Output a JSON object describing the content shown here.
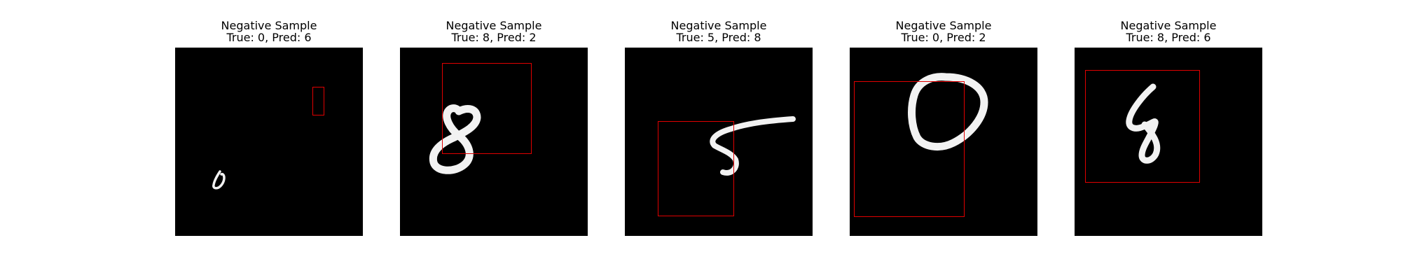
{
  "colors": {
    "background": "#ffffff",
    "image_background": "#000000",
    "digit_stroke": "#f2f2f2",
    "box_outline": "#e00000"
  },
  "samples": [
    {
      "heading": "Negative Sample",
      "caption": "True: 0, Pred: 6",
      "true_label": 0,
      "pred_label": 6
    },
    {
      "heading": "Negative Sample",
      "caption": "True: 8, Pred: 2",
      "true_label": 8,
      "pred_label": 2
    },
    {
      "heading": "Negative Sample",
      "caption": "True: 5, Pred: 8",
      "true_label": 5,
      "pred_label": 8
    },
    {
      "heading": "Negative Sample",
      "caption": "True: 0, Pred: 2",
      "true_label": 0,
      "pred_label": 2
    },
    {
      "heading": "Negative Sample",
      "caption": "True: 8, Pred: 6",
      "true_label": 8,
      "pred_label": 6
    }
  ]
}
